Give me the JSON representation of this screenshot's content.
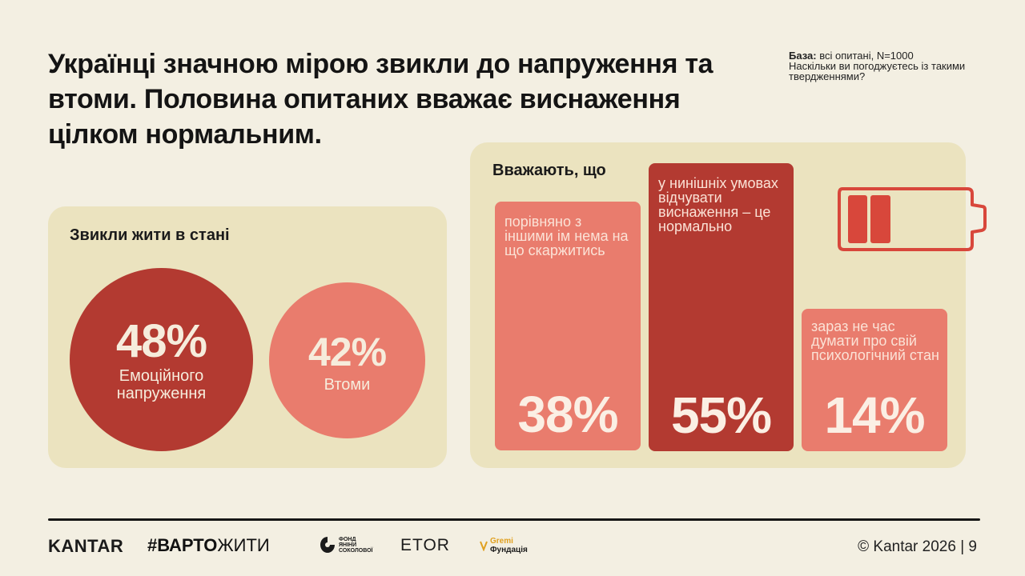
{
  "header": {
    "title": "Українці значною мірою звикли до напруження та втоми. Половина опитаних вважає виснаження цілком нормальним.",
    "base_label": "База:",
    "base_text": " всі опитані, N=1000",
    "question": "Наскільки ви погоджуєтесь із такими твердженнями?"
  },
  "left_panel": {
    "title": "Звикли жити в стані",
    "items": [
      {
        "value": "48%",
        "label": "Емоційного напруження",
        "color": "#b33a31"
      },
      {
        "value": "42%",
        "label": "Втоми",
        "color": "#e97c6d"
      }
    ]
  },
  "right_panel": {
    "title": "Вважають, що",
    "bars": [
      {
        "value": "38%",
        "label": "порівняно з іншими ім нема на що скаржитись",
        "color": "#e97c6d"
      },
      {
        "value": "55%",
        "label": "у нинішніх умовах відчувати виснаження – це нормально",
        "color": "#b33a31"
      },
      {
        "value": "14%",
        "label": "зараз не час думати про свій психологічний стан",
        "color": "#e97c6d"
      }
    ]
  },
  "icons": {
    "battery": "battery-low-icon",
    "battery_color": "#d8473b"
  },
  "footer": {
    "logos": [
      "KANTAR",
      "#ВАРТОЖИТИ",
      "ФОНД ЯНІНИ СОКОЛОВОЇ",
      "ETOR",
      "Gremi Фундація"
    ],
    "logo_kantar": "KANTAR",
    "logo_varto_bold": "#ВАРТО",
    "logo_varto_light": "ЖИТИ",
    "logo_fond_1": "ФОНД",
    "logo_fond_2": "ЯНІНИ",
    "logo_fond_3": "СОКОЛОВОЇ",
    "logo_etor": "ETOR",
    "logo_gremi_1": "Gremi",
    "logo_gremi_2": "Фундація",
    "copyright": "© Kantar 2026 | 9"
  },
  "chart_data": [
    {
      "type": "bar",
      "title": "Звикли жити в стані",
      "categories": [
        "Емоційного напруження",
        "Втоми"
      ],
      "values": [
        48,
        42
      ],
      "unit": "%"
    },
    {
      "type": "bar",
      "title": "Вважають, що",
      "categories": [
        "порівняно з іншими ім нема на що скаржитись",
        "у нинішніх умовах відчувати виснаження – це нормально",
        "зараз не час думати про свій психологічний стан"
      ],
      "values": [
        38,
        55,
        14
      ],
      "unit": "%"
    }
  ]
}
